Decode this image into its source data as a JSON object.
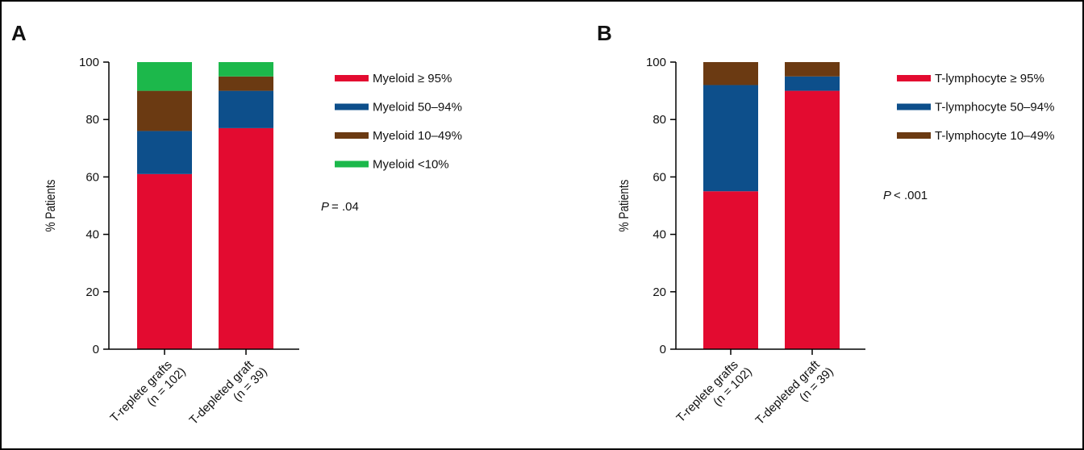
{
  "chart_data": [
    {
      "type": "bar",
      "stacked": true,
      "panel_label": "A",
      "y_label": "% Patients",
      "categories": [
        "T-replete grafts\n(n = 102)",
        "T-depleted graft\n(n = 39)"
      ],
      "series": [
        {
          "name": "Myeloid ≥ 95%",
          "color": "#e30b30",
          "values": [
            61,
            77
          ]
        },
        {
          "name": "Myeloid 50–94%",
          "color": "#0d4f8b",
          "values": [
            15,
            13
          ]
        },
        {
          "name": "Myeloid 10–49%",
          "color": "#6b3a12",
          "values": [
            14,
            5
          ]
        },
        {
          "name": "Myeloid <10%",
          "color": "#1cb84b",
          "values": [
            10,
            5
          ]
        }
      ],
      "ylim": [
        0,
        100
      ],
      "yticks": [
        0,
        20,
        40,
        60,
        80,
        100
      ],
      "p_symbol": "P",
      "p_text": "= .04"
    },
    {
      "type": "bar",
      "stacked": true,
      "panel_label": "B",
      "y_label": "% Patients",
      "categories": [
        "T-replete grafts\n(n = 102)",
        "T-depleted graft\n(n = 39)"
      ],
      "series": [
        {
          "name": "T-lymphocyte ≥ 95%",
          "color": "#e30b30",
          "values": [
            55,
            90
          ]
        },
        {
          "name": "T-lymphocyte 50–94%",
          "color": "#0d4f8b",
          "values": [
            37,
            5
          ]
        },
        {
          "name": "T-lymphocyte 10–49%",
          "color": "#6b3a12",
          "values": [
            8,
            5
          ]
        }
      ],
      "ylim": [
        0,
        100
      ],
      "yticks": [
        0,
        20,
        40,
        60,
        80,
        100
      ],
      "p_symbol": "P",
      "p_text": "< .001"
    }
  ]
}
